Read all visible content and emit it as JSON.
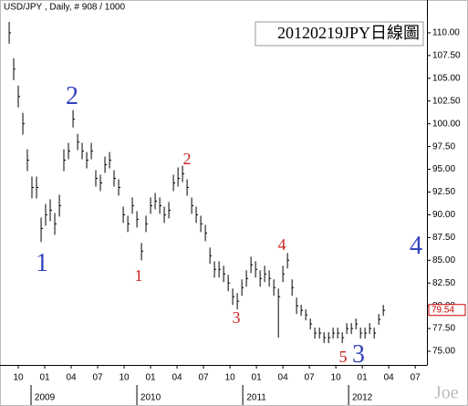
{
  "chart_data": {
    "type": "hlc",
    "header": "USD/JPY , Daily, # 908 / 1000",
    "title": "20120219JPY日線圖",
    "watermark": "Joe",
    "color": "#000000",
    "last_value": 79.54,
    "last_value_color": "#cc0000",
    "annotations": [
      {
        "text": "1",
        "color": "#3344bb"
      },
      {
        "text": "2",
        "color": "#3344bb"
      },
      {
        "text": "1",
        "color": "#cc2222"
      },
      {
        "text": "2",
        "color": "#cc2222"
      },
      {
        "text": "3",
        "color": "#cc2222"
      },
      {
        "text": "4",
        "color": "#cc2222"
      },
      {
        "text": "5",
        "color": "#cc2222"
      },
      {
        "text": "3",
        "color": "#3344bb"
      },
      {
        "text": "4",
        "color": "#3344bb"
      }
    ],
    "x": [
      -1.03,
      -0.52,
      0.0,
      0.52,
      1.03,
      1.55,
      2.07,
      2.59,
      3.1,
      3.62,
      4.14,
      4.66,
      5.17,
      5.69,
      6.21,
      6.73,
      7.24,
      7.76,
      8.28,
      8.79,
      9.31,
      9.83,
      10.35,
      10.86,
      11.38,
      11.9,
      12.42,
      12.93,
      13.45,
      13.97,
      14.48,
      15.0,
      15.52,
      16.04,
      16.55,
      17.07,
      17.59,
      18.11,
      18.62,
      19.14,
      19.66,
      20.17,
      20.69,
      21.21,
      21.73,
      22.24,
      22.76,
      23.28,
      23.8,
      24.31,
      24.83,
      25.35,
      25.86,
      26.38,
      26.9,
      27.42,
      27.93,
      28.45,
      28.97,
      29.49,
      30.0,
      30.52,
      31.04,
      31.55,
      32.07,
      32.59,
      33.11,
      33.62,
      34.14,
      34.66,
      35.18,
      35.69,
      36.21,
      36.73,
      37.24,
      37.76,
      38.28,
      38.8,
      39.31,
      39.83,
      40.35,
      40.87,
      41.38
    ],
    "high": [
      111.2,
      107.2,
      104.2,
      101.2,
      97.2,
      94.2,
      94.2,
      89.7,
      91.2,
      91.7,
      90.2,
      92.2,
      97.2,
      97.9,
      101.5,
      98.9,
      97.9,
      96.9,
      97.9,
      94.9,
      94.4,
      96.4,
      96.9,
      94.9,
      93.9,
      90.9,
      89.9,
      91.9,
      90.4,
      86.9,
      89.9,
      91.9,
      92.4,
      91.9,
      90.9,
      91.4,
      94.4,
      95.2,
      95.4,
      93.9,
      91.9,
      90.9,
      89.9,
      88.9,
      86.4,
      84.9,
      84.9,
      84.4,
      83.4,
      81.9,
      81.4,
      82.9,
      83.9,
      85.4,
      84.9,
      83.9,
      84.4,
      83.9,
      82.9,
      81.9,
      84.4,
      85.8,
      82.9,
      80.9,
      80.1,
      79.6,
      78.6,
      77.6,
      77.6,
      77.1,
      77.1,
      77.6,
      77.6,
      77.1,
      78.1,
      78.1,
      78.6,
      77.6,
      77.6,
      78.1,
      77.6,
      79.1,
      80.1
    ],
    "low": [
      108.8,
      104.8,
      101.8,
      98.8,
      94.8,
      91.8,
      91.8,
      87.0,
      88.8,
      89.3,
      87.8,
      89.8,
      94.8,
      96.1,
      99.6,
      97.1,
      96.1,
      95.1,
      96.1,
      93.1,
      92.6,
      94.6,
      95.1,
      93.1,
      92.1,
      89.1,
      88.1,
      90.1,
      88.6,
      85.0,
      88.1,
      90.1,
      90.6,
      90.1,
      89.1,
      89.6,
      92.6,
      93.1,
      93.6,
      92.1,
      90.1,
      89.1,
      88.1,
      87.1,
      84.6,
      83.1,
      83.1,
      82.6,
      81.6,
      80.1,
      79.6,
      81.1,
      82.1,
      83.6,
      83.1,
      82.1,
      82.6,
      82.1,
      81.1,
      76.5,
      82.6,
      84.1,
      81.1,
      79.1,
      78.9,
      78.4,
      77.4,
      76.4,
      76.4,
      75.9,
      75.9,
      76.4,
      76.4,
      75.9,
      76.9,
      76.9,
      77.4,
      76.4,
      76.4,
      76.9,
      76.4,
      77.9,
      78.9
    ],
    "close": [
      110,
      106,
      103,
      100,
      96,
      93,
      93,
      88.5,
      90,
      90.5,
      89,
      91,
      96,
      97,
      100.5,
      98,
      97,
      96,
      97,
      94,
      93.5,
      95.5,
      96,
      94,
      93,
      90,
      89,
      91,
      89.5,
      86,
      89,
      91,
      91.5,
      91,
      90,
      90.5,
      93.5,
      94,
      94.5,
      93,
      91,
      90,
      89,
      88,
      85.5,
      84,
      84,
      83.5,
      82.5,
      81,
      80.5,
      82,
      83,
      84.5,
      84,
      83,
      83.5,
      83,
      82,
      81,
      83.5,
      85,
      82,
      80,
      79.5,
      79,
      78,
      77,
      77,
      76.5,
      76.5,
      77,
      77,
      76.5,
      77.5,
      77.5,
      78,
      77,
      77,
      77.5,
      77,
      78.5,
      79.5
    ],
    "xlim": [
      -2.07,
      46.33
    ],
    "ylim": [
      73.5,
      112.8
    ],
    "xticks": [
      {
        "value": 0,
        "label": "10"
      },
      {
        "value": 3,
        "label": "01"
      },
      {
        "value": 6,
        "label": "04"
      },
      {
        "value": 9,
        "label": "07"
      },
      {
        "value": 12,
        "label": "10"
      },
      {
        "value": 15,
        "label": "01"
      },
      {
        "value": 18,
        "label": "04"
      },
      {
        "value": 21,
        "label": "07"
      },
      {
        "value": 24,
        "label": "10"
      },
      {
        "value": 27,
        "label": "01"
      },
      {
        "value": 30,
        "label": "04"
      },
      {
        "value": 33,
        "label": "07"
      },
      {
        "value": 36,
        "label": "10"
      },
      {
        "value": 39,
        "label": "01"
      },
      {
        "value": 42,
        "label": "04"
      },
      {
        "value": 45,
        "label": "07"
      }
    ],
    "year_ticks": [
      {
        "value": 3,
        "label": "2009"
      },
      {
        "value": 15,
        "label": "2010"
      },
      {
        "value": 27,
        "label": "2011"
      },
      {
        "value": 39,
        "label": "2012"
      }
    ],
    "yticks": [
      {
        "value": 75,
        "label": "75.00"
      },
      {
        "value": 77.5,
        "label": "77.50"
      },
      {
        "value": 80,
        "label": "80.00"
      },
      {
        "value": 82.5,
        "label": "82.50"
      },
      {
        "value": 85,
        "label": "85.00"
      },
      {
        "value": 87.5,
        "label": "87.50"
      },
      {
        "value": 90,
        "label": "90.00"
      },
      {
        "value": 92.5,
        "label": "92.50"
      },
      {
        "value": 95,
        "label": "95.00"
      },
      {
        "value": 97.5,
        "label": "97.50"
      },
      {
        "value": 100,
        "label": "100.00"
      },
      {
        "value": 102.5,
        "label": "102.50"
      },
      {
        "value": 105,
        "label": "105.00"
      },
      {
        "value": 107.5,
        "label": "107.50"
      },
      {
        "value": 110,
        "label": "110.00"
      }
    ]
  }
}
